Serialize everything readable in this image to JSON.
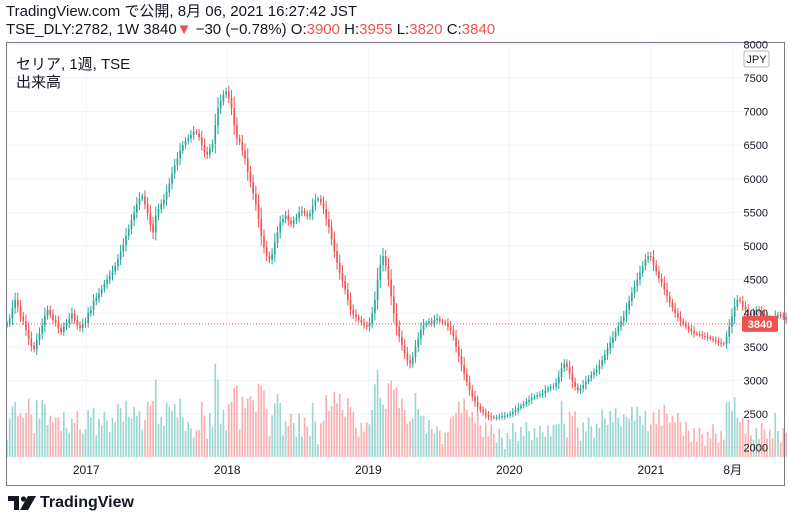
{
  "header": {
    "line1": "TradingView.com で公開, 8月 06, 2021 16:27:42 JST",
    "symbol": "TSE_DLY:2782, 1W",
    "last": "3840",
    "change": "−30 (−0.78%)",
    "o_label": "O:",
    "o_value": "3900",
    "h_label": "H:",
    "h_value": "3955",
    "l_label": "L:",
    "l_value": "3820",
    "c_label": "C:",
    "c_value": "3840"
  },
  "legend": {
    "title": "セリア, 1週, TSE",
    "volume_label": "出来高"
  },
  "footer": {
    "brand": "TradingView"
  },
  "colors": {
    "up": "#26a69a",
    "down": "#ef5350",
    "price_line": "#ef5350",
    "grid": "#f0f3fa"
  },
  "chart_data": {
    "type": "candlestick",
    "currency": "JPY",
    "last_price": 3840,
    "last_price_label": "3840",
    "y_ticks": [
      "8000",
      "7500",
      "7000",
      "6500",
      "6000",
      "5500",
      "5000",
      "4500",
      "4000",
      "3500",
      "3000",
      "2500",
      "2000"
    ],
    "y_tick_values": [
      8000,
      7500,
      7000,
      6500,
      6000,
      5500,
      5000,
      4500,
      4000,
      3500,
      3000,
      2500,
      2000
    ],
    "ylim": [
      1860,
      8020
    ],
    "x_ticks": [
      "2017",
      "2018",
      "2019",
      "2020",
      "2021",
      "8月"
    ],
    "x_tick_dates": [
      "2017-01-01",
      "2018-01-01",
      "2019-01-01",
      "2020-01-01",
      "2021-01-01",
      "2021-08-01"
    ],
    "x_range": [
      "2016-06-10",
      "2021-08-25"
    ],
    "series": [
      {
        "type": "candlestick",
        "dates_start": "2016-06-10",
        "interval_days": 7,
        "closes": [
          3850,
          3920,
          4080,
          4200,
          4100,
          3950,
          3880,
          3750,
          3620,
          3520,
          3460,
          3600,
          3700,
          3820,
          3960,
          4050,
          3980,
          3900,
          3860,
          3780,
          3720,
          3800,
          3850,
          3920,
          3990,
          3900,
          3820,
          3780,
          3840,
          3860,
          4000,
          4050,
          4180,
          4230,
          4290,
          4360,
          4430,
          4500,
          4560,
          4620,
          4700,
          4800,
          4920,
          5020,
          5150,
          5250,
          5380,
          5500,
          5620,
          5700,
          5740,
          5620,
          5480,
          5320,
          5200,
          5450,
          5550,
          5620,
          5690,
          5800,
          5930,
          6080,
          6200,
          6300,
          6420,
          6500,
          6560,
          6600,
          6650,
          6700,
          6680,
          6620,
          6500,
          6400,
          6360,
          6450,
          6520,
          6800,
          7050,
          7150,
          7250,
          7300,
          7200,
          7050,
          6800,
          6600,
          6550,
          6420,
          6300,
          6100,
          5950,
          5780,
          5620,
          5400,
          5150,
          4980,
          4850,
          4800,
          4880,
          5050,
          5200,
          5350,
          5400,
          5450,
          5380,
          5320,
          5380,
          5420,
          5500,
          5520,
          5480,
          5440,
          5480,
          5600,
          5680,
          5700,
          5650,
          5550,
          5400,
          5280,
          5100,
          4920,
          4750,
          4600,
          4480,
          4350,
          4200,
          4050,
          3980,
          3940,
          3900,
          3860,
          3820,
          3800,
          3850,
          4000,
          4200,
          4500,
          4720,
          4850,
          4700,
          4500,
          4250,
          4000,
          3800,
          3650,
          3520,
          3400,
          3300,
          3250,
          3350,
          3500,
          3620,
          3750,
          3820,
          3850,
          3880,
          3850,
          3900,
          3920,
          3880,
          3860,
          3850,
          3800,
          3750,
          3650,
          3500,
          3360,
          3230,
          3100,
          2980,
          2850,
          2760,
          2680,
          2610,
          2560,
          2520,
          2480,
          2460,
          2450,
          2440,
          2450,
          2460,
          2470,
          2470,
          2480,
          2500,
          2530,
          2560,
          2590,
          2620,
          2650,
          2680,
          2710,
          2740,
          2760,
          2780,
          2790,
          2810,
          2850,
          2880,
          2900,
          2910,
          2960,
          3050,
          3180,
          3250,
          3200,
          3100,
          2980,
          2900,
          2850,
          2880,
          2930,
          2980,
          3030,
          3080,
          3120,
          3160,
          3220,
          3300,
          3380,
          3470,
          3560,
          3640,
          3720,
          3800,
          3880,
          3950,
          4050,
          4180,
          4300,
          4400,
          4500,
          4600,
          4700,
          4800,
          4850,
          4830,
          4720,
          4620,
          4520,
          4450,
          4350,
          4250,
          4150,
          4080,
          4000,
          3940,
          3880,
          3840,
          3800,
          3760,
          3730,
          3700,
          3690,
          3680,
          3660,
          3650,
          3640,
          3620,
          3600,
          3580,
          3560,
          3550,
          3540,
          3650,
          3800,
          3950,
          4100,
          4200,
          4180,
          4100,
          4050,
          4000,
          3980,
          4020,
          4050,
          4030,
          4000,
          3960,
          3920,
          3900,
          3880,
          3950,
          3980,
          3960,
          3940,
          3900,
          3870,
          3840
        ]
      }
    ]
  }
}
